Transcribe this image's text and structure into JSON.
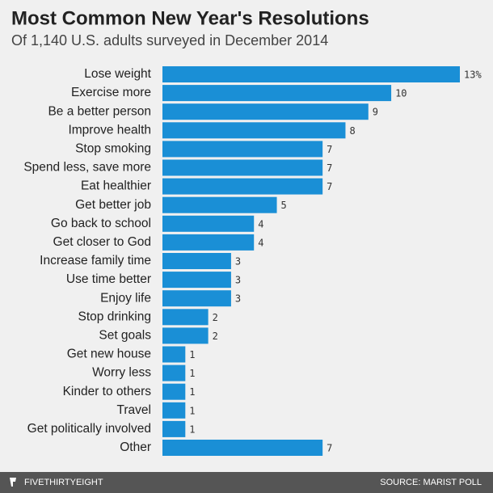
{
  "chart_data": {
    "type": "bar",
    "orientation": "horizontal",
    "title": "Most Common New Year's Resolutions",
    "subtitle": "Of 1,140 U.S. adults surveyed in December 2014",
    "categories": [
      "Lose weight",
      "Exercise more",
      "Be a better person",
      "Improve health",
      "Stop smoking",
      "Spend less, save more",
      "Eat healthier",
      "Get better job",
      "Go back to school",
      "Get closer to God",
      "Increase family time",
      "Use time better",
      "Enjoy life",
      "Stop drinking",
      "Set goals",
      "Get new house",
      "Worry less",
      "Kinder to others",
      "Travel",
      "Get politically involved",
      "Other"
    ],
    "values": [
      13,
      10,
      9,
      8,
      7,
      7,
      7,
      5,
      4,
      4,
      3,
      3,
      3,
      2,
      2,
      1,
      1,
      1,
      1,
      1,
      7
    ],
    "value_labels": [
      "13%",
      "10",
      "9",
      "8",
      "7",
      "7",
      "7",
      "5",
      "4",
      "4",
      "3",
      "3",
      "3",
      "2",
      "2",
      "1",
      "1",
      "1",
      "1",
      "1",
      "7"
    ],
    "color": "#1a8fd6",
    "brand": "FIVETHIRTYEIGHT",
    "source": "SOURCE: MARIST POLL"
  }
}
